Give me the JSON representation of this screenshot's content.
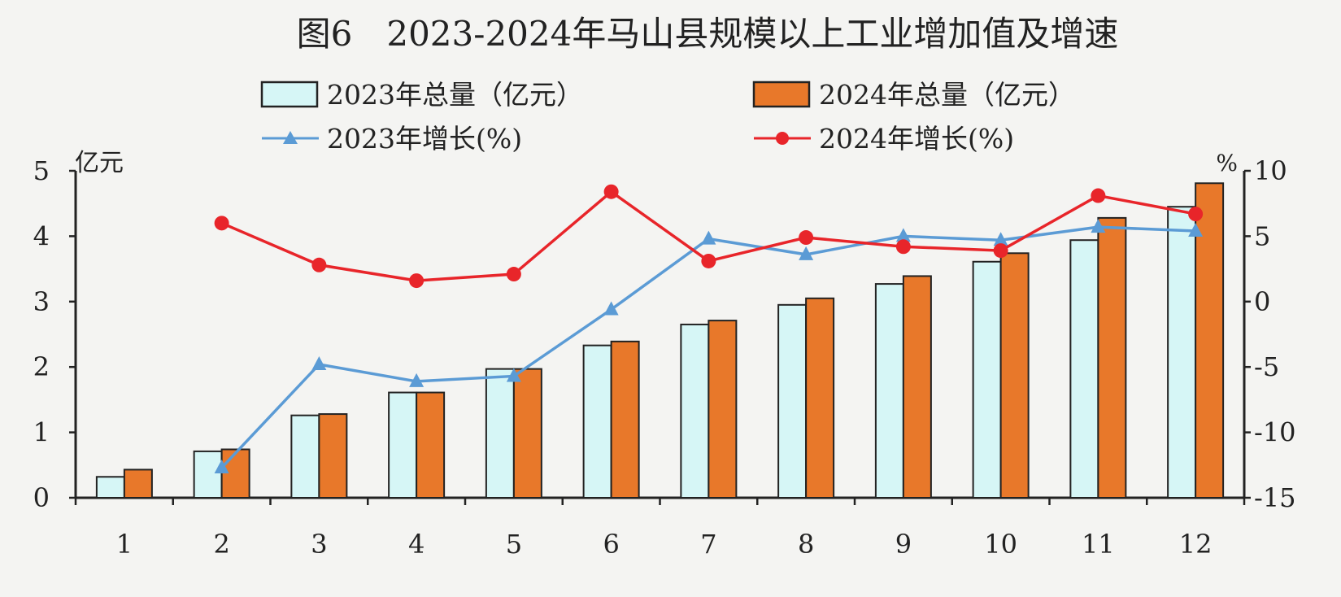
{
  "chart_data": {
    "type": "bar",
    "title": "图6　2023-2024年马山县规模以上工业增加值及增速",
    "categories": [
      "1",
      "2",
      "3",
      "4",
      "5",
      "6",
      "7",
      "8",
      "9",
      "10",
      "11",
      "12"
    ],
    "y_left": {
      "unit": "亿元",
      "ylim": [
        0,
        5
      ],
      "ticks": [
        "0",
        "1",
        "2",
        "3",
        "4",
        "5"
      ]
    },
    "y_right": {
      "unit": "%",
      "ylim": [
        -15,
        10
      ],
      "ticks": [
        "-15",
        "-10",
        "-5",
        "0",
        "5",
        "10"
      ]
    },
    "bar_series": [
      {
        "name": "2023年总量（亿元）",
        "color": "#d6f6f6",
        "values": [
          0.32,
          0.71,
          1.26,
          1.61,
          1.97,
          2.33,
          2.65,
          2.95,
          3.27,
          3.61,
          3.94,
          4.45
        ]
      },
      {
        "name": "2024年总量（亿元）",
        "color": "#e8782a",
        "values": [
          0.43,
          0.74,
          1.28,
          1.61,
          1.97,
          2.39,
          2.71,
          3.05,
          3.39,
          3.74,
          4.28,
          4.81
        ]
      }
    ],
    "line_series": [
      {
        "name": "2023年增长(%)",
        "color": "#5b9bd5",
        "marker": "triangle",
        "values": [
          null,
          -12.7,
          -4.8,
          -6.1,
          -5.7,
          -0.6,
          4.8,
          3.6,
          5.0,
          4.7,
          5.7,
          5.4
        ]
      },
      {
        "name": "2024年增长(%)",
        "color": "#e8252a",
        "marker": "circle",
        "values": [
          null,
          6.0,
          2.8,
          1.6,
          2.1,
          8.4,
          3.1,
          4.9,
          4.2,
          3.9,
          8.1,
          6.7
        ]
      }
    ],
    "legend_position": "top",
    "grid": false
  }
}
